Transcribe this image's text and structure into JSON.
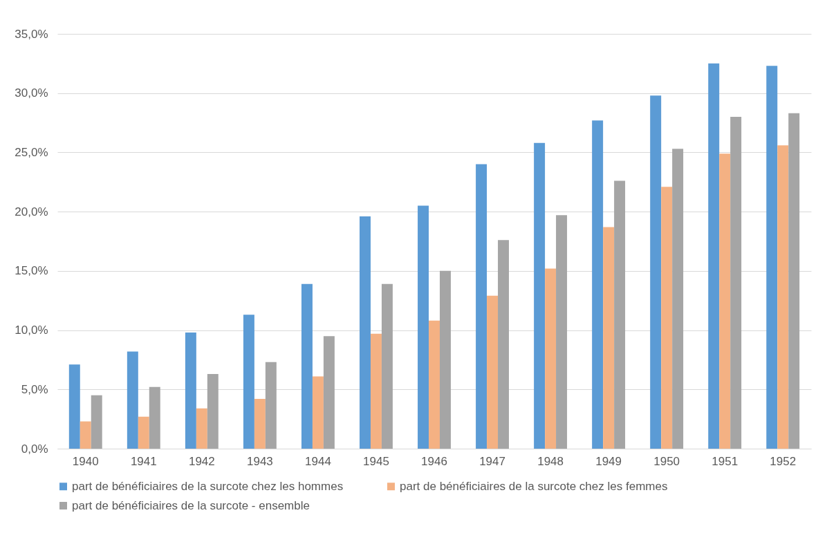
{
  "chart_data": {
    "type": "bar",
    "categories": [
      "1940",
      "1941",
      "1942",
      "1943",
      "1944",
      "1945",
      "1946",
      "1947",
      "1948",
      "1949",
      "1950",
      "1951",
      "1952"
    ],
    "series": [
      {
        "name": "part de bénéficiaires de la surcote chez les hommes",
        "color": "#5b9bd5",
        "values": [
          7.1,
          8.2,
          9.8,
          11.3,
          13.9,
          19.6,
          20.5,
          24.0,
          25.8,
          27.7,
          29.8,
          32.5,
          32.3
        ]
      },
      {
        "name": "part de bénéficiaires de la surcote chez les femmes",
        "color": "#f4b183",
        "values": [
          2.3,
          2.7,
          3.4,
          4.2,
          6.1,
          9.7,
          10.8,
          12.9,
          15.2,
          18.7,
          22.1,
          24.9,
          25.6
        ]
      },
      {
        "name": "part de bénéficiaires de la surcote - ensemble",
        "color": "#a5a5a5",
        "values": [
          4.5,
          5.2,
          6.3,
          7.3,
          9.5,
          13.9,
          15.0,
          17.6,
          19.7,
          22.6,
          25.3,
          28.0,
          28.3
        ]
      }
    ],
    "ylim": [
      0,
      35
    ],
    "yticks": [
      {
        "value": 0,
        "label": "0,0%"
      },
      {
        "value": 5,
        "label": "5,0%"
      },
      {
        "value": 10,
        "label": "10,0%"
      },
      {
        "value": 15,
        "label": "15,0%"
      },
      {
        "value": 20,
        "label": "20,0%"
      },
      {
        "value": 25,
        "label": "25,0%"
      },
      {
        "value": 30,
        "label": "30,0%"
      },
      {
        "value": 35,
        "label": "35,0%"
      }
    ],
    "grid": "y",
    "legend": "bottom"
  }
}
